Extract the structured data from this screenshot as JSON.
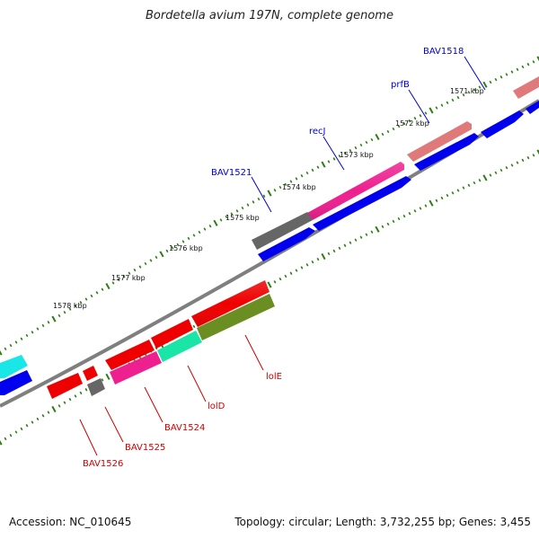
{
  "title": "Bordetella avium 197N, complete genome",
  "footer": {
    "accession": "Accession: NC_010645",
    "topology": "Topology: circular; Length: 3,732,255 bp; Genes: 3,455"
  },
  "colors": {
    "backbone": "#7f7f7f",
    "tick": "#2e7d12",
    "plus_label": "#0000cc",
    "minus_label": "#cc0000",
    "leader": "#cc0000",
    "leader_plus": "#0000cc"
  },
  "scale_labels": [
    "1571 kbp",
    "1572 kbp",
    "1573 kbp",
    "1574 kbp",
    "1575 kbp",
    "1576 kbp",
    "1577 kbp",
    "1578 kbp"
  ],
  "gene_labels": [
    {
      "text": "BAV1518",
      "strand": "plus"
    },
    {
      "text": "prfB",
      "strand": "plus"
    },
    {
      "text": "recJ",
      "strand": "plus"
    },
    {
      "text": "BAV1521",
      "strand": "plus"
    },
    {
      "text": "lolE",
      "strand": "minus"
    },
    {
      "text": "lolD",
      "strand": "minus"
    },
    {
      "text": "BAV1524",
      "strand": "minus"
    },
    {
      "text": "BAV1525",
      "strand": "minus"
    },
    {
      "text": "BAV1526",
      "strand": "minus"
    }
  ],
  "features": [
    {
      "name": "blue-plus-1",
      "color": "#0000ee"
    },
    {
      "name": "blue-plus-2",
      "color": "#0000ee"
    },
    {
      "name": "blue-plus-3",
      "color": "#0000ee"
    },
    {
      "name": "blue-plus-4",
      "color": "#0000ee"
    },
    {
      "name": "salmon-1",
      "color": "#e07a7a"
    },
    {
      "name": "salmon-2",
      "color": "#e07a7a"
    },
    {
      "name": "magenta-recj",
      "color": "#ee1f8f"
    },
    {
      "name": "gray-bav1521",
      "color": "#666666"
    },
    {
      "name": "red-lole",
      "color": "#ee0000"
    },
    {
      "name": "olive-lole",
      "color": "#6b8e23"
    },
    {
      "name": "red-lold",
      "color": "#ee0000"
    },
    {
      "name": "cyan-lold",
      "color": "#19e6a6"
    },
    {
      "name": "red-bav1524",
      "color": "#ee0000"
    },
    {
      "name": "magenta-bav1524",
      "color": "#ee1f8f"
    },
    {
      "name": "red-bav1525",
      "color": "#ee0000"
    },
    {
      "name": "gray-bav1525",
      "color": "#666666"
    },
    {
      "name": "red-bav1526",
      "color": "#ee0000"
    },
    {
      "name": "cyan-left",
      "color": "#19e6e6"
    },
    {
      "name": "blue-left",
      "color": "#0000ee"
    }
  ]
}
